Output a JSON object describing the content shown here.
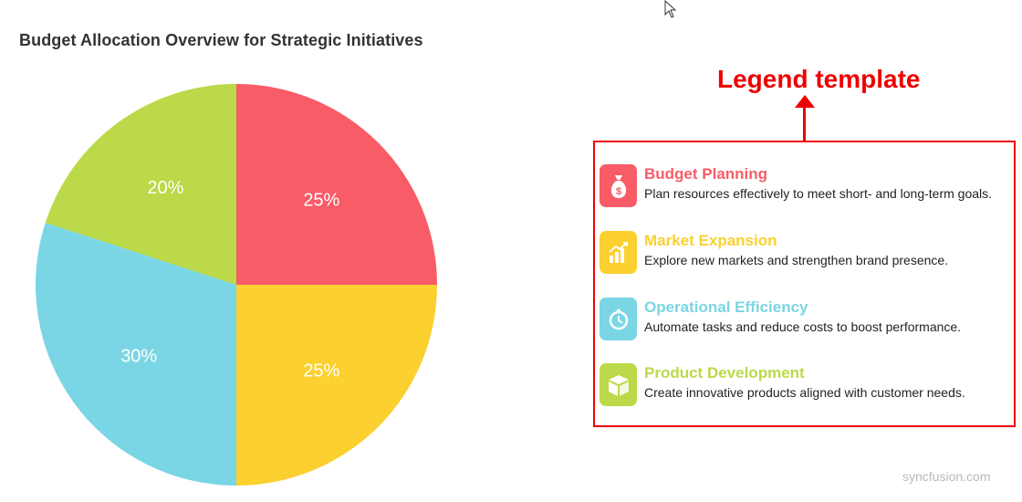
{
  "chart_data": {
    "type": "pie",
    "title": "Budget Allocation Overview for Strategic Initiatives",
    "categories": [
      "Budget Planning",
      "Market Expansion",
      "Operational Efficiency",
      "Product Development"
    ],
    "values": [
      25,
      25,
      30,
      20
    ],
    "labels": [
      "25%",
      "25%",
      "30%",
      "20%"
    ],
    "colors": [
      "#f75c67",
      "#fbd02f",
      "#7ad6e4",
      "#bbd948"
    ],
    "start_angle_deg": 0,
    "direction": "clockwise",
    "legend_position": "right"
  },
  "annotation": {
    "text": "Legend template",
    "color": "#ee0000"
  },
  "legend": {
    "items": [
      {
        "name": "Budget Planning",
        "description": "Plan resources effectively to meet short- and long-term goals.",
        "icon": "money-bag-icon",
        "color": "#f75c67"
      },
      {
        "name": "Market Expansion",
        "description": "Explore new markets and strengthen brand presence.",
        "icon": "growth-chart-icon",
        "color": "#fbd02f"
      },
      {
        "name": "Operational Efficiency",
        "description": "Automate tasks and reduce costs to boost performance.",
        "icon": "gear-clock-icon",
        "color": "#7ad6e4"
      },
      {
        "name": "Product Development",
        "description": "Create innovative products aligned with customer needs.",
        "icon": "product-box-icon",
        "color": "#bbd948"
      }
    ]
  },
  "watermark": "syncfusion.com"
}
